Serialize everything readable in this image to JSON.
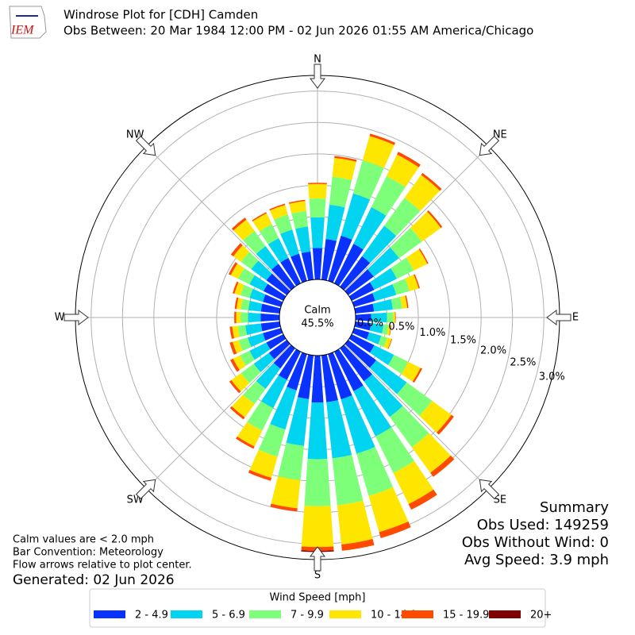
{
  "chart_data": {
    "type": "windrose",
    "logo_text": "IEM",
    "title": "Windrose Plot for [CDH] Camden",
    "subtitle": "Obs Between: 20 Mar 1984 12:00 PM - 02 Jun 2026 01:55 AM America/Chicago",
    "x": [
      0,
      10,
      20,
      30,
      40,
      50,
      60,
      70,
      80,
      90,
      100,
      110,
      120,
      130,
      140,
      150,
      160,
      170,
      180,
      190,
      200,
      210,
      220,
      230,
      240,
      250,
      260,
      270,
      280,
      290,
      300,
      310,
      320,
      330,
      340,
      350
    ],
    "xlim": [
      0,
      360
    ],
    "xticks": [
      {
        "value": 0,
        "label": "N"
      },
      {
        "value": 45,
        "label": "NE"
      },
      {
        "value": 90,
        "label": "E"
      },
      {
        "value": 135,
        "label": "SE"
      },
      {
        "value": 180,
        "label": "S"
      },
      {
        "value": 225,
        "label": "SW"
      },
      {
        "value": 270,
        "label": "W"
      },
      {
        "value": 315,
        "label": "NW"
      }
    ],
    "ylim": [
      0,
      3.25
    ],
    "yticks": [
      {
        "value": 0,
        "label": "0.0%"
      },
      {
        "value": 0.5,
        "label": "0.5%"
      },
      {
        "value": 1,
        "label": "1.0%"
      },
      {
        "value": 1.5,
        "label": "1.5%"
      },
      {
        "value": 2,
        "label": "2.0%"
      },
      {
        "value": 2.5,
        "label": "2.5%"
      },
      {
        "value": 3,
        "label": "3.0%"
      }
    ],
    "grid": true,
    "calm": {
      "name": "Calm",
      "value": 45.5,
      "value_label": "45.5%"
    },
    "legend_title": "Wind Speed [mph]",
    "series": [
      {
        "name": "2 - 4.9",
        "color": "#0a32ff",
        "values": [
          0.5,
          0.65,
          0.75,
          0.7,
          0.6,
          0.5,
          0.4,
          0.35,
          0.3,
          0.25,
          0.25,
          0.25,
          0.4,
          0.55,
          0.65,
          0.7,
          0.75,
          0.75,
          0.75,
          0.7,
          0.6,
          0.5,
          0.4,
          0.35,
          0.3,
          0.3,
          0.3,
          0.3,
          0.3,
          0.3,
          0.35,
          0.4,
          0.45,
          0.45,
          0.45,
          0.45
        ]
      },
      {
        "name": "5 - 6.9",
        "color": "#00d4f0",
        "values": [
          0.49,
          0.55,
          0.7,
          0.65,
          0.6,
          0.5,
          0.4,
          0.35,
          0.3,
          0.25,
          0.2,
          0.2,
          0.35,
          0.6,
          0.7,
          0.8,
          0.9,
          0.9,
          0.9,
          0.75,
          0.65,
          0.5,
          0.4,
          0.3,
          0.3,
          0.25,
          0.25,
          0.2,
          0.2,
          0.22,
          0.25,
          0.3,
          0.35,
          0.35,
          0.4,
          0.4
        ]
      },
      {
        "name": "7 - 9.9",
        "color": "#7dff7a",
        "values": [
          0.3,
          0.45,
          0.55,
          0.55,
          0.55,
          0.45,
          0.3,
          0.22,
          0.15,
          0.1,
          0.08,
          0.1,
          0.25,
          0.5,
          0.6,
          0.65,
          0.7,
          0.75,
          0.75,
          0.55,
          0.45,
          0.4,
          0.3,
          0.25,
          0.17,
          0.15,
          0.12,
          0.12,
          0.12,
          0.15,
          0.2,
          0.2,
          0.3,
          0.25,
          0.25,
          0.25
        ]
      },
      {
        "name": "10 - 14.9",
        "color": "#ffe600",
        "values": [
          0.23,
          0.3,
          0.4,
          0.38,
          0.45,
          0.37,
          0.24,
          0.15,
          0.08,
          0.03,
          0.04,
          0.07,
          0.22,
          0.38,
          0.5,
          0.55,
          0.6,
          0.63,
          0.65,
          0.45,
          0.35,
          0.28,
          0.26,
          0.19,
          0.12,
          0.1,
          0.09,
          0.07,
          0.07,
          0.1,
          0.13,
          0.15,
          0.22,
          0.19,
          0.16,
          0.16
        ]
      },
      {
        "name": "15 - 19.9",
        "color": "#ff4a00",
        "values": [
          0.02,
          0.03,
          0.04,
          0.05,
          0.04,
          0.03,
          0.02,
          0.02,
          0.02,
          0.01,
          0.01,
          0.01,
          0.03,
          0.05,
          0.08,
          0.1,
          0.1,
          0.1,
          0.06,
          0.05,
          0.05,
          0.04,
          0.04,
          0.04,
          0.05,
          0.05,
          0.04,
          0.03,
          0.03,
          0.03,
          0.04,
          0.05,
          0.04,
          0.02,
          0.02,
          0.02
        ]
      },
      {
        "name": "20+",
        "color": "#7f0000",
        "values": [
          0,
          0,
          0,
          0,
          0,
          0,
          0,
          0,
          0,
          0,
          0,
          0,
          0,
          0,
          0,
          0,
          0,
          0,
          0.02,
          0,
          0,
          0,
          0,
          0,
          0,
          0,
          0,
          0,
          0,
          0,
          0,
          0,
          0,
          0,
          0,
          0
        ]
      }
    ],
    "notes": [
      "Calm values are < 2.0 mph",
      "Bar Convention: Meteorology",
      "Flow arrows relative to plot center."
    ],
    "generated": "Generated: 02 Jun 2026",
    "summary": [
      "Summary",
      "Obs Used: 149259",
      "Obs Without Wind: 0",
      "Avg Speed: 3.9 mph"
    ]
  }
}
